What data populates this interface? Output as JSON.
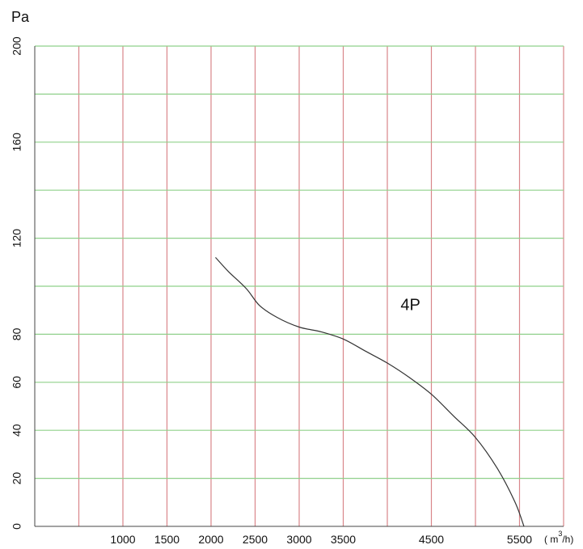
{
  "chart_data": {
    "type": "line",
    "ylabel": "Pa",
    "xlabel_unit": "( m³/h)",
    "xlabel_unit_parts": {
      "prefix": "( m",
      "exponent": "3",
      "suffix": "/h)"
    },
    "ylim": [
      0,
      200
    ],
    "xlim": [
      0,
      6000
    ],
    "x_ticks": [
      1000,
      1500,
      2000,
      2500,
      3000,
      3500,
      4500,
      5500
    ],
    "x_tick_labels": [
      "1000",
      "1500",
      "2000",
      "2500",
      "3000",
      "3500",
      "4500",
      "5500"
    ],
    "y_ticks": [
      0,
      20,
      40,
      60,
      80,
      120,
      160,
      200
    ],
    "y_tick_labels": [
      "0",
      "20",
      "40",
      "60",
      "80",
      "120",
      "160",
      "200"
    ],
    "vertical_gridlines": [
      500,
      1000,
      1500,
      2000,
      2500,
      3000,
      3500,
      4000,
      4500,
      5000,
      5500,
      6000
    ],
    "horizontal_gridlines": [
      20,
      40,
      60,
      80,
      100,
      120,
      140,
      160,
      180,
      200
    ],
    "grid": true,
    "colors": {
      "vertical_grid": "#d9868a",
      "horizontal_grid": "#8fd08a",
      "curve": "#333333",
      "text": "#111111"
    },
    "series": [
      {
        "name": "4P",
        "x": [
          2050,
          2200,
          2400,
          2550,
          2750,
          3000,
          3250,
          3500,
          3750,
          4000,
          4250,
          4500,
          4750,
          5000,
          5250,
          5450,
          5550
        ],
        "y": [
          112,
          106,
          99,
          92,
          87,
          83,
          81,
          78,
          73,
          68,
          62,
          55,
          46,
          37,
          24,
          10,
          0
        ]
      }
    ],
    "annotations": [
      {
        "text": "4P",
        "x": 4150,
        "y": 90
      }
    ]
  }
}
